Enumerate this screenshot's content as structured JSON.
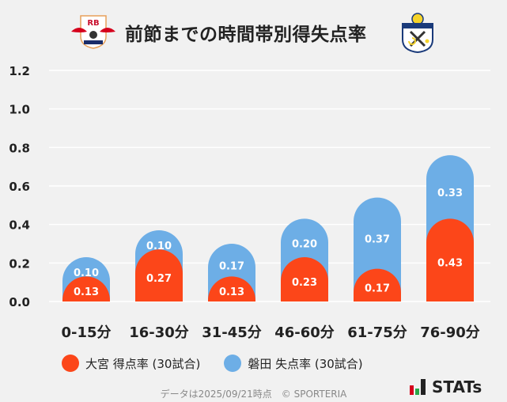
{
  "header": {
    "title": "前節までの時間帯別得失点率",
    "home_logo": "RB",
    "away_logo": "jubilo-iwata-crest"
  },
  "chart_data": {
    "type": "bar",
    "stacked": true,
    "categories": [
      "0-15分",
      "16-30分",
      "31-45分",
      "46-60分",
      "61-75分",
      "76-90分"
    ],
    "series": [
      {
        "name": "大宮 得点率 (30試合)",
        "color": "#fc4619",
        "values": [
          0.13,
          0.27,
          0.13,
          0.23,
          0.17,
          0.43
        ]
      },
      {
        "name": "磐田 失点率 (30試合)",
        "color": "#6daee6",
        "values": [
          0.1,
          0.1,
          0.17,
          0.2,
          0.37,
          0.33
        ]
      }
    ],
    "ylim": [
      0,
      1.2
    ],
    "yticks": [
      "0.0",
      "0.2",
      "0.4",
      "0.6",
      "0.8",
      "1.0",
      "1.2"
    ],
    "grid": true,
    "legend": "bottom"
  },
  "footer": {
    "note": "データは2025/09/21時点　© SPORTERIA",
    "brand": "STATs"
  }
}
